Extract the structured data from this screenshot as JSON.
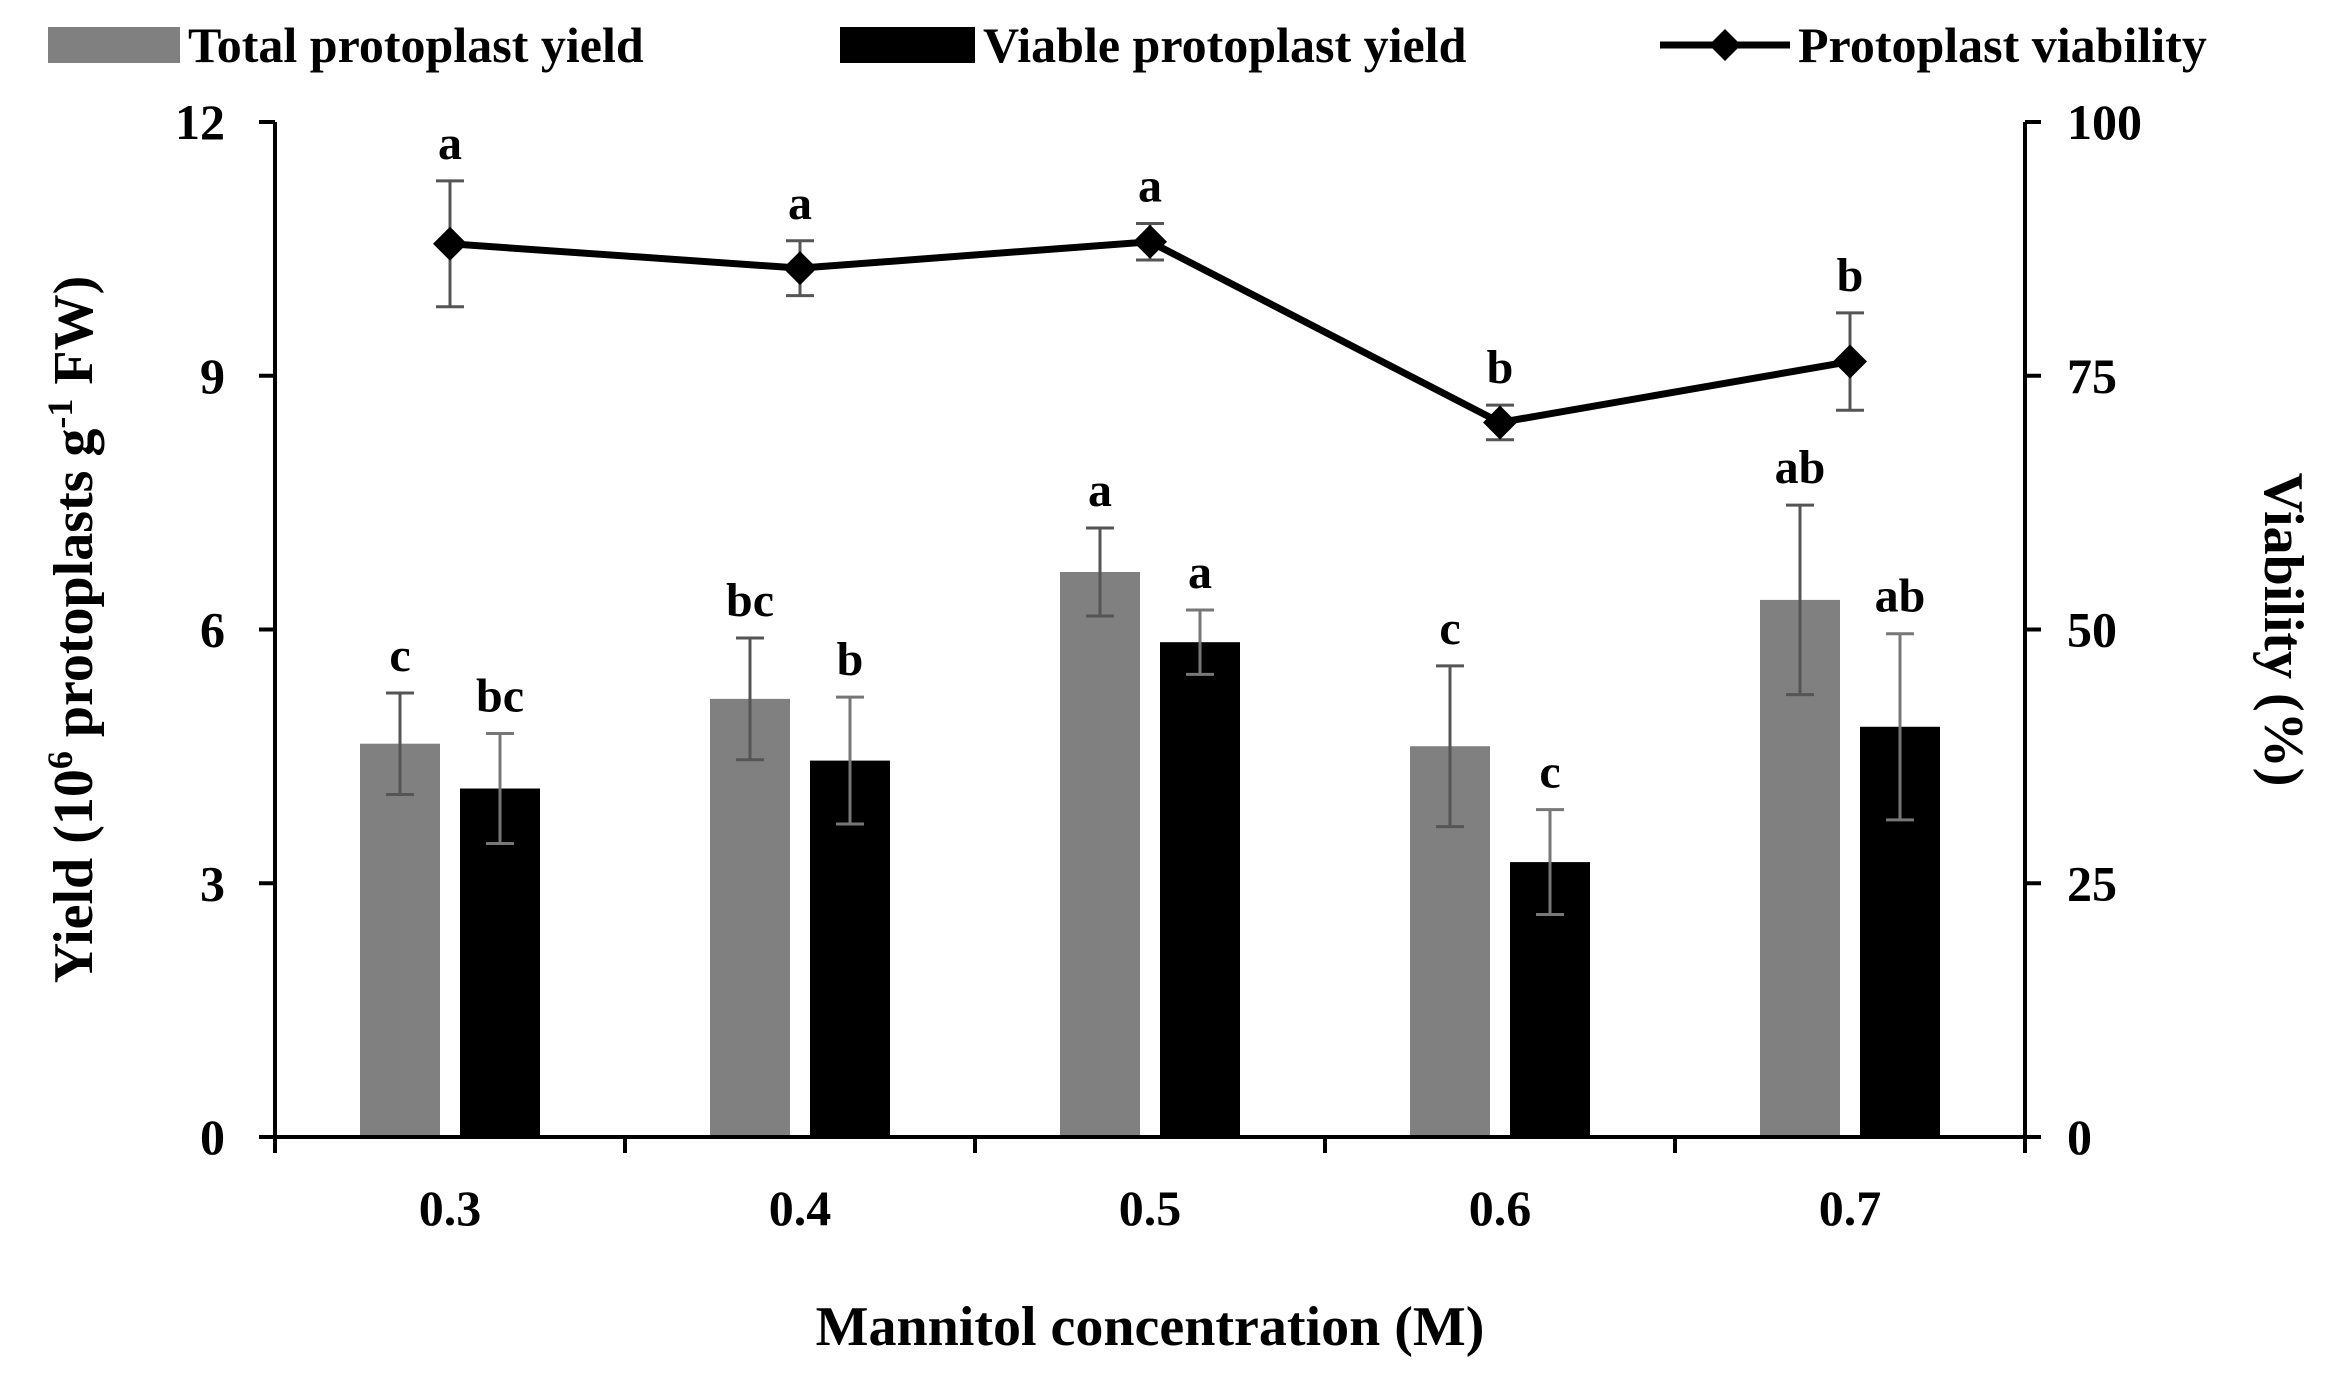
{
  "chart_data": {
    "type": "bar+line",
    "categories": [
      "0.3",
      "0.4",
      "0.5",
      "0.6",
      "0.7"
    ],
    "xlabel": "Mannitol concentration (M)",
    "ylabel_left": {
      "prefix": "Yield (10",
      "sup1": "6",
      "middle": " protoplasts g",
      "sup2": "-1",
      "suffix": " FW)"
    },
    "ylabel_right": "Viability (%)",
    "ylim_left": [
      0,
      12
    ],
    "yticks_left": [
      0,
      3,
      6,
      9,
      12
    ],
    "ylim_right": [
      0,
      100
    ],
    "yticks_right": [
      0,
      25,
      50,
      75,
      100
    ],
    "legend_position": "top",
    "series": [
      {
        "name": "Total protoplast yield",
        "kind": "bar",
        "axis": "left",
        "color": "#808080",
        "values": [
          4.65,
          5.18,
          6.68,
          4.62,
          6.35
        ],
        "errors": [
          0.6,
          0.72,
          0.52,
          0.95,
          1.12
        ],
        "letters": [
          "c",
          "bc",
          "a",
          "c",
          "ab"
        ]
      },
      {
        "name": "Viable protoplast yield",
        "kind": "bar",
        "axis": "left",
        "color": "#000000",
        "values": [
          4.12,
          4.45,
          5.85,
          3.25,
          4.85
        ],
        "errors": [
          0.65,
          0.75,
          0.38,
          0.62,
          1.1
        ],
        "letters": [
          "bc",
          "b",
          "a",
          "c",
          "ab"
        ]
      },
      {
        "name": "Protoplast viability",
        "kind": "line",
        "axis": "right",
        "color": "#000000",
        "values": [
          88.0,
          85.6,
          88.2,
          70.4,
          76.4
        ],
        "errors": [
          6.2,
          2.7,
          1.8,
          1.7,
          4.8
        ],
        "letters": [
          "a",
          "a",
          "a",
          "b",
          "b"
        ]
      }
    ]
  }
}
